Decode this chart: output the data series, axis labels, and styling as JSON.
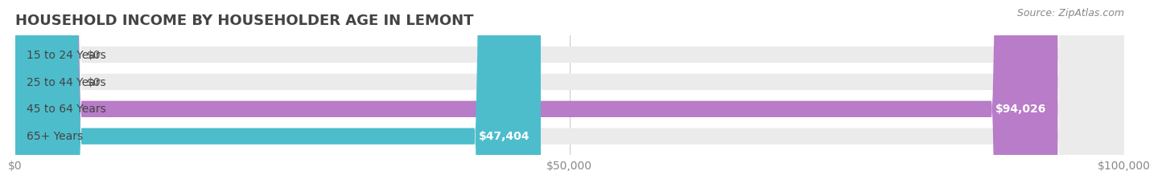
{
  "title": "HOUSEHOLD INCOME BY HOUSEHOLDER AGE IN LEMONT",
  "source": "Source: ZipAtlas.com",
  "categories": [
    "15 to 24 Years",
    "25 to 44 Years",
    "45 to 64 Years",
    "65+ Years"
  ],
  "values": [
    0,
    0,
    94026,
    47404
  ],
  "bar_colors": [
    "#f4a0a8",
    "#a8c4e8",
    "#b87cc8",
    "#4dbdcc"
  ],
  "label_texts": [
    "$0",
    "$0",
    "$94,026",
    "$47,404"
  ],
  "xlim": [
    0,
    100000
  ],
  "xticks": [
    0,
    50000,
    100000
  ],
  "xtick_labels": [
    "$0",
    "$50,000",
    "$100,000"
  ],
  "background_color": "#f5f5f5",
  "bar_background_color": "#ebebeb",
  "title_fontsize": 13,
  "label_fontsize": 10,
  "tick_fontsize": 10,
  "source_fontsize": 9,
  "bar_height": 0.6,
  "fig_width": 14.06,
  "fig_height": 2.33
}
